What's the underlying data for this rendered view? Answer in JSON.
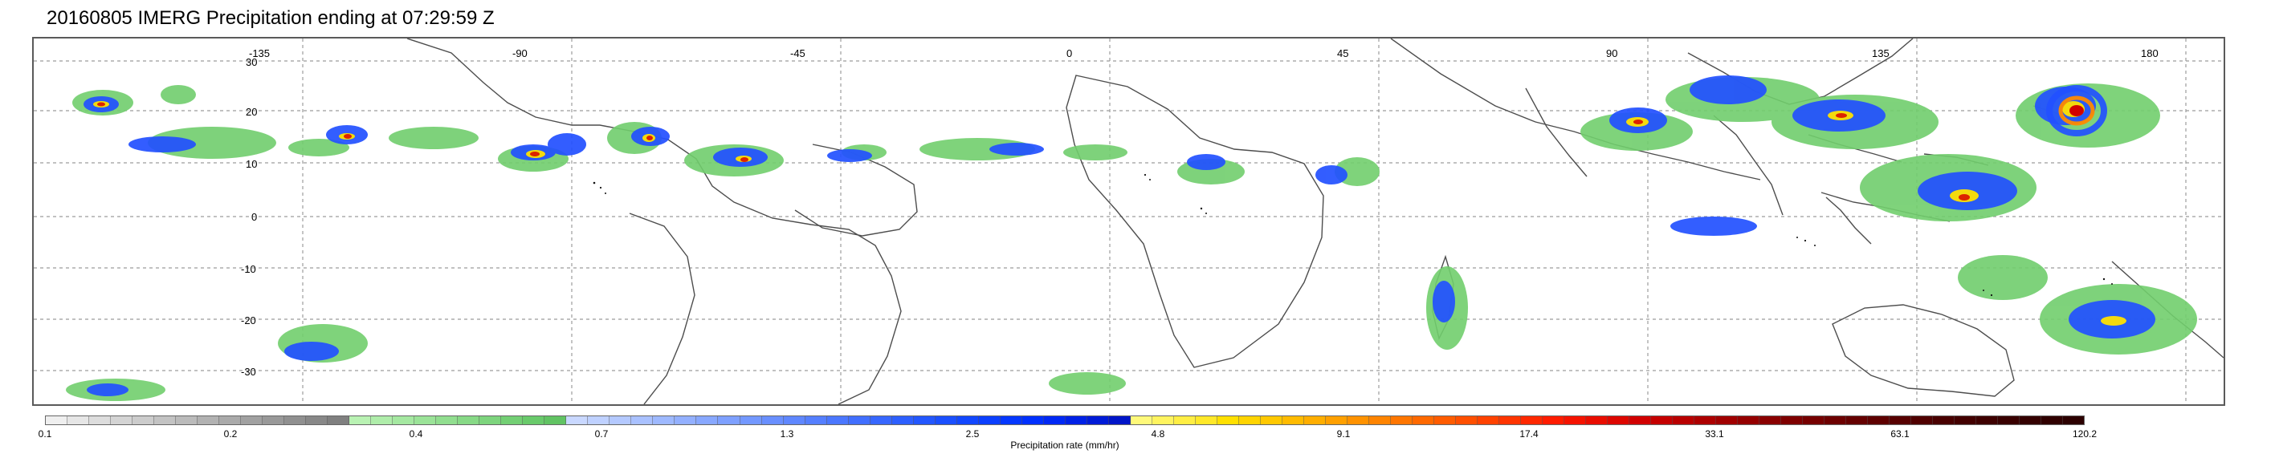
{
  "title": "20160805 IMERG Precipitation ending at 07:29:59 Z",
  "map": {
    "grid_lines": true,
    "longitude_labels": [
      "-135",
      "-90",
      "-45",
      "0",
      "45",
      "90",
      "135",
      "180"
    ],
    "latitude_labels": [
      "30",
      "20",
      "10",
      "0",
      "-10",
      "-20",
      "-30"
    ]
  },
  "colorbar": {
    "title": "Precipitation rate (mm/hr)",
    "tick_labels": [
      "0.1",
      "0.2",
      "0.4",
      "0.7",
      "1.3",
      "2.5",
      "4.8",
      "9.1",
      "17.4",
      "33.1",
      "63.1",
      "120.2"
    ],
    "colors": [
      "#efefef",
      "#e6e6e6",
      "#dddddd",
      "#d4d4d4",
      "#cccccc",
      "#c3c3c3",
      "#bbbbbb",
      "#b2b2b2",
      "#aaaaaa",
      "#a1a1a1",
      "#999999",
      "#909090",
      "#888888",
      "#808080",
      "#b9f2b3",
      "#afedaa",
      "#a5e8a1",
      "#9be398",
      "#91de8f",
      "#87d986",
      "#7dd47d",
      "#73cf74",
      "#69ca6b",
      "#61c363",
      "#c9d8ff",
      "#bfd1ff",
      "#b4c9ff",
      "#a9c1ff",
      "#9eb9ff",
      "#93b0ff",
      "#88a8ff",
      "#7ea0ff",
      "#7398ff",
      "#698fff",
      "#5f87ff",
      "#557fff",
      "#4b77ff",
      "#416fff",
      "#3767ff",
      "#2d5fff",
      "#2357ff",
      "#1a4fff",
      "#1247ff",
      "#0b3fff",
      "#0537ff",
      "#0030ff",
      "#0028f5",
      "#0021e6",
      "#001bd7",
      "#0015c8",
      "#fff97a",
      "#fff45f",
      "#ffee44",
      "#ffe829",
      "#ffe000",
      "#ffd400",
      "#ffc800",
      "#ffbb00",
      "#ffae00",
      "#ffa000",
      "#ff9200",
      "#ff8400",
      "#ff7600",
      "#ff6900",
      "#ff5c00",
      "#ff4f00",
      "#ff4200",
      "#ff3500",
      "#ff2800",
      "#ff1c00",
      "#f51300",
      "#e90d00",
      "#dd0700",
      "#d10000",
      "#c50000",
      "#b90000",
      "#ad0000",
      "#a10000",
      "#950000",
      "#8a0000",
      "#7f0000",
      "#760000",
      "#6d0000",
      "#650000",
      "#5e0000",
      "#570000",
      "#500000",
      "#490000",
      "#430000",
      "#3e0000",
      "#390000",
      "#340000",
      "#300000",
      "#2c0000"
    ]
  }
}
